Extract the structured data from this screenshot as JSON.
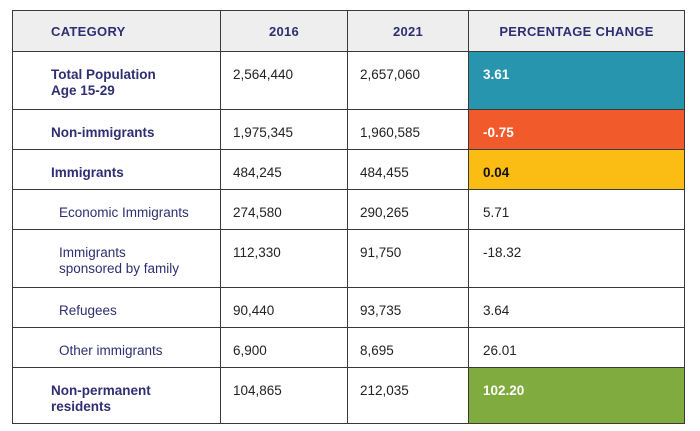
{
  "headers": [
    "CATEGORY",
    "2016",
    "2021",
    "PERCENTAGE CHANGE"
  ],
  "colors": {
    "teal": "#2795ad",
    "orange": "#f15a2b",
    "yellow": "#fbbd14",
    "green": "#7fab3f"
  },
  "rows": [
    {
      "category": "Total Population\nAge 15-29",
      "y2016": "2,564,440",
      "y2021": "2,657,060",
      "change": "3.61",
      "style": "main",
      "highlight": "teal"
    },
    {
      "category": "Non-immigrants",
      "y2016": "1,975,345",
      "y2021": "1,960,585",
      "change": "-0.75",
      "style": "main",
      "highlight": "orange"
    },
    {
      "category": "Immigrants",
      "y2016": "484,245",
      "y2021": "484,455",
      "change": "0.04",
      "style": "main",
      "highlight": "yellow"
    },
    {
      "category": "Economic Immigrants",
      "y2016": "274,580",
      "y2021": "290,265",
      "change": "5.71",
      "style": "sub",
      "highlight": ""
    },
    {
      "category": "Immigrants\nsponsored by family",
      "y2016": "112,330",
      "y2021": "91,750",
      "change": "-18.32",
      "style": "sub",
      "highlight": ""
    },
    {
      "category": "Refugees",
      "y2016": "90,440",
      "y2021": "93,735",
      "change": "3.64",
      "style": "sub",
      "highlight": ""
    },
    {
      "category": "Other immigrants",
      "y2016": "6,900",
      "y2021": "8,695",
      "change": "26.01",
      "style": "sub",
      "highlight": ""
    },
    {
      "category": "Non-permanent\nresidents",
      "y2016": "104,865",
      "y2021": "212,035",
      "change": "102.20",
      "style": "main",
      "highlight": "green"
    }
  ]
}
